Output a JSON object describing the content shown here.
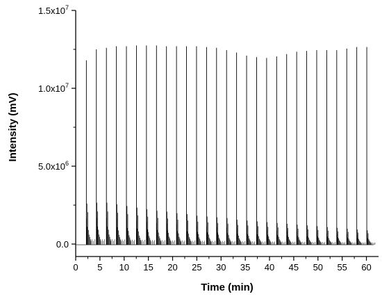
{
  "chart_data": {
    "type": "line",
    "title": "",
    "xlabel": "Time (min)",
    "ylabel": "Intensity (mV)",
    "xlim": [
      0,
      62.5
    ],
    "ylim": [
      -800000,
      15000000
    ],
    "x_ticks": [
      0,
      5,
      10,
      15,
      20,
      25,
      30,
      35,
      40,
      45,
      50,
      55,
      60
    ],
    "x_minor_step": 2.5,
    "y_ticks": [
      {
        "value": 0,
        "label": "0.0"
      },
      {
        "value": 5000000,
        "label": "5.0x10",
        "exp": "6"
      },
      {
        "value": 10000000,
        "label": "1.0x10",
        "exp": "7"
      },
      {
        "value": 15000000,
        "label": "1.5x10",
        "exp": "7"
      }
    ],
    "grid": false,
    "series_color": "#000000",
    "injection_interval_min": 2.067,
    "first_injection_min": 2.2,
    "injection_count": 29,
    "main_peak_heights": [
      11800000,
      12500000,
      12600000,
      12700000,
      12700000,
      12750000,
      12750000,
      12750000,
      12700000,
      12700000,
      12700000,
      12700000,
      12650000,
      12600000,
      12450000,
      12300000,
      12100000,
      12000000,
      11950000,
      12050000,
      12200000,
      12350000,
      12400000,
      12450000,
      12450000,
      12450000,
      12550000,
      12650000,
      12650000
    ],
    "secondary_peak_heights": [
      5000000,
      5100000,
      5100000,
      4900000,
      4700000,
      4500000,
      4300000,
      4100000,
      4000000,
      3800000,
      3700000,
      3500000,
      3400000,
      3300000,
      3200000,
      3000000,
      2900000,
      2800000,
      2700000,
      2600000,
      2500000,
      2400000,
      2300000,
      2200000,
      2100000,
      2000000,
      1900000,
      1800000,
      1700000
    ],
    "peak_pattern": [
      {
        "dt": 0.0,
        "rel": 1.0
      },
      {
        "dt": 0.06,
        "rel": 0.33
      },
      {
        "dt": 0.12,
        "rel": 0.52
      },
      {
        "dt": 0.18,
        "rel": 0.22
      },
      {
        "dt": 0.28,
        "rel": 0.41
      },
      {
        "dt": 0.42,
        "rel": 0.18
      },
      {
        "dt": 0.55,
        "rel": 0.12
      },
      {
        "dt": 0.7,
        "rel": 0.09
      },
      {
        "dt": 0.85,
        "rel": 0.06
      }
    ]
  }
}
